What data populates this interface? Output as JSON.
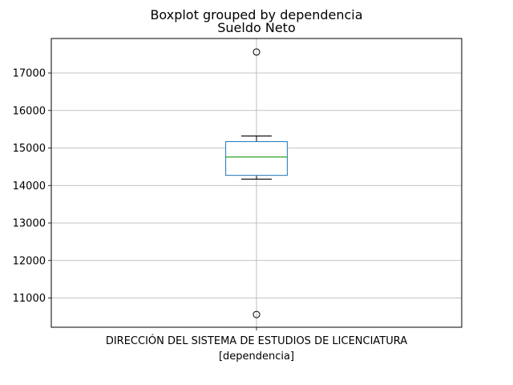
{
  "chart_data": {
    "type": "box",
    "suptitle": "Boxplot grouped by dependencia",
    "title": "Sueldo Neto",
    "xlabel": "[dependencia]",
    "ylabel": "",
    "categories": [
      "DIRECCIÓN DEL SISTEMA DE ESTUDIOS DE LICENCIATURA"
    ],
    "boxes": [
      {
        "category": "DIRECCIÓN DEL SISTEMA DE ESTUDIOS DE LICENCIATURA",
        "whisker_low": 14170,
        "q1": 14270,
        "median": 14760,
        "q3": 15170,
        "whisker_high": 15320,
        "outliers": [
          17560,
          10560
        ]
      }
    ],
    "ylim": [
      10220,
      17920
    ],
    "yticks": [
      11000,
      12000,
      13000,
      14000,
      15000,
      16000,
      17000
    ],
    "grid": true,
    "colors": {
      "box": "#1f77b4",
      "median": "#2ca02c",
      "whisker": "#000000",
      "grid": "#b0b0b0",
      "spine": "#000000"
    }
  }
}
